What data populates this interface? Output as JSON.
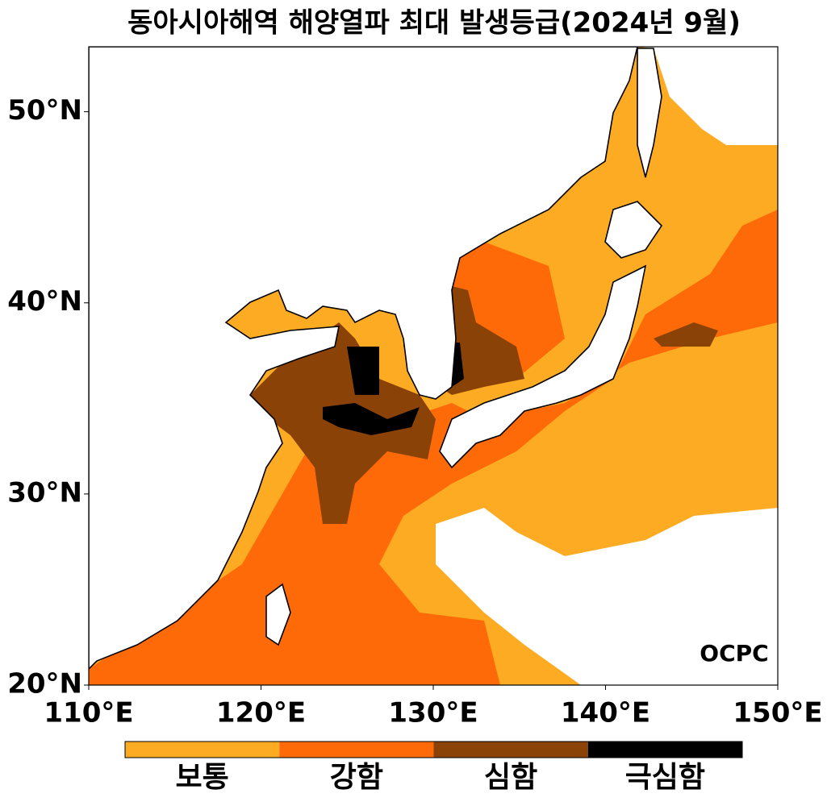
{
  "title": "동아시아해역 해양열파 최대 발생등급(2024년 9월)",
  "map": {
    "xlim": [
      110,
      150
    ],
    "ylim": [
      20,
      53.4
    ],
    "xticks": [
      {
        "value": 110,
        "label": "110°E"
      },
      {
        "value": 120,
        "label": "120°E"
      },
      {
        "value": 130,
        "label": "130°E"
      },
      {
        "value": 140,
        "label": "140°E"
      },
      {
        "value": 150,
        "label": "150°E"
      }
    ],
    "yticks": [
      {
        "value": 20,
        "label": "20°N"
      },
      {
        "value": 30,
        "label": "30°N"
      },
      {
        "value": 40,
        "label": "40°N"
      },
      {
        "value": 50,
        "label": "50°N"
      }
    ]
  },
  "legend": {
    "items": [
      {
        "label": "보통",
        "color": "#fcab22"
      },
      {
        "label": "강함",
        "color": "#ff6a08"
      },
      {
        "label": "심함",
        "color": "#8b4206"
      },
      {
        "label": "극심함",
        "color": "#000000"
      }
    ]
  },
  "logo": "OCPC"
}
